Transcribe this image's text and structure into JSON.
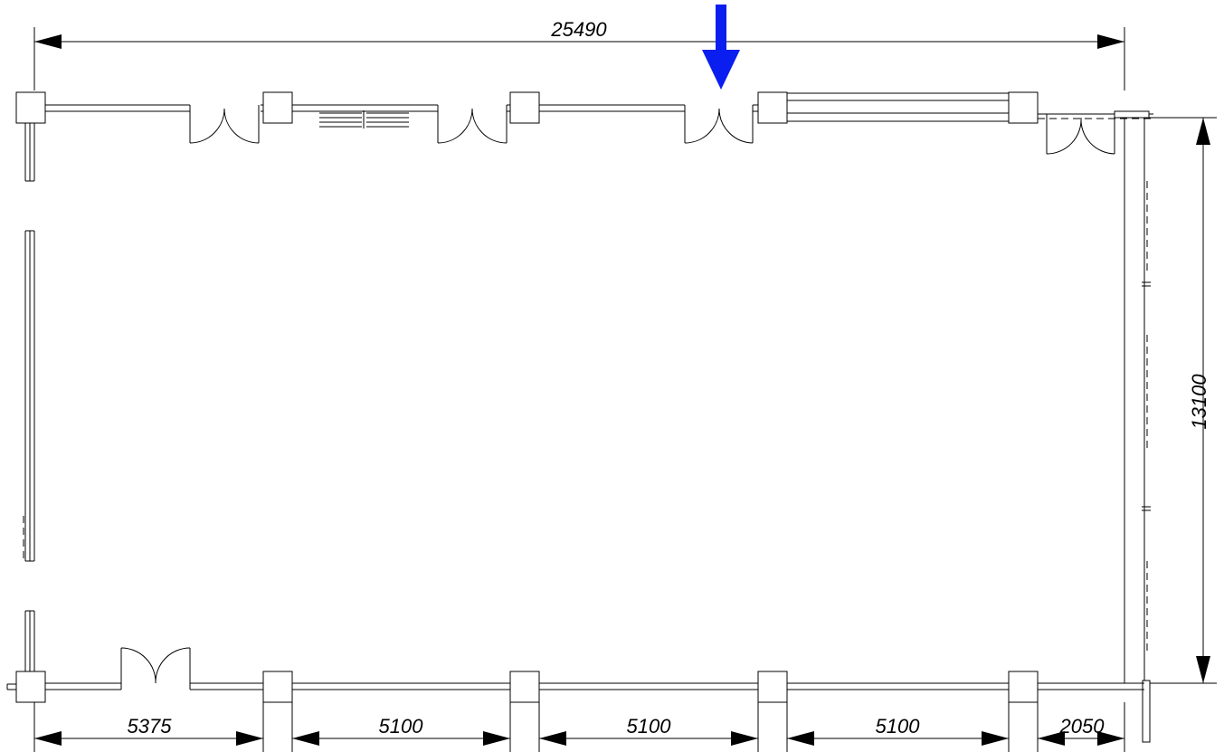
{
  "drawing": {
    "type": "floor-plan",
    "overall_width_label": "25490",
    "overall_depth_label": "13100",
    "bottom_dimensions": [
      "5375",
      "5100",
      "5100",
      "5100",
      "2050"
    ],
    "marker": {
      "type": "arrow",
      "color": "#0a1ef0",
      "direction": "down"
    }
  }
}
